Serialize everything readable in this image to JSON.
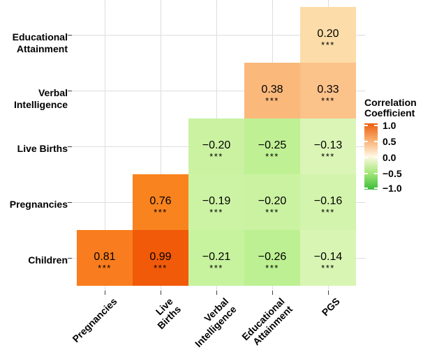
{
  "figure": {
    "background": "#FFFFFF",
    "gridline_color": "#DEDEDE",
    "tick_color": "#404040"
  },
  "chart_data": {
    "type": "heatmap",
    "title": "",
    "x_categories": [
      "Pregnancies",
      "Live Births",
      "Verbal\nIntelligence",
      "Educational\nAttainment",
      "PGS"
    ],
    "y_categories_top_to_bottom": [
      "Educational\nAttainment",
      "Verbal\nIntelligence",
      "Live Births",
      "Pregnancies",
      "Children"
    ],
    "grid": true,
    "cell_annotation": "correlation value with significance stars below",
    "cells": [
      {
        "row": 0,
        "col": 4,
        "y": "Educational Attainment",
        "x": "PGS",
        "value": 0.2,
        "label": "0.20",
        "stars": "***",
        "color": "#FCDCA8"
      },
      {
        "row": 1,
        "col": 3,
        "y": "Verbal Intelligence",
        "x": "Educational Attainment",
        "value": 0.38,
        "label": "0.38",
        "stars": "***",
        "color": "#FAB87B"
      },
      {
        "row": 1,
        "col": 4,
        "y": "Verbal Intelligence",
        "x": "PGS",
        "value": 0.33,
        "label": "0.33",
        "stars": "***",
        "color": "#FBC28A"
      },
      {
        "row": 2,
        "col": 2,
        "y": "Live Births",
        "x": "Verbal Intelligence",
        "value": -0.2,
        "label": "−0.20",
        "stars": "***",
        "color": "#CAF2A1"
      },
      {
        "row": 2,
        "col": 3,
        "y": "Live Births",
        "x": "Educational Attainment",
        "value": -0.25,
        "label": "−0.25",
        "stars": "***",
        "color": "#BFF094"
      },
      {
        "row": 2,
        "col": 4,
        "y": "Live Births",
        "x": "PGS",
        "value": -0.13,
        "label": "−0.13",
        "stars": "***",
        "color": "#DBF5B6"
      },
      {
        "row": 3,
        "col": 1,
        "y": "Pregnancies",
        "x": "Live Births",
        "value": 0.76,
        "label": "0.76",
        "stars": "***",
        "color": "#F8831F"
      },
      {
        "row": 3,
        "col": 2,
        "y": "Pregnancies",
        "x": "Verbal Intelligence",
        "value": -0.19,
        "label": "−0.19",
        "stars": "***",
        "color": "#CCF3A4"
      },
      {
        "row": 3,
        "col": 3,
        "y": "Pregnancies",
        "x": "Educational Attainment",
        "value": -0.2,
        "label": "−0.20",
        "stars": "***",
        "color": "#CAF2A1"
      },
      {
        "row": 3,
        "col": 4,
        "y": "Pregnancies",
        "x": "PGS",
        "value": -0.16,
        "label": "−0.16",
        "stars": "***",
        "color": "#D3F4AC"
      },
      {
        "row": 4,
        "col": 0,
        "y": "Children",
        "x": "Pregnancies",
        "value": 0.81,
        "label": "0.81",
        "stars": "***",
        "color": "#F97D1E"
      },
      {
        "row": 4,
        "col": 1,
        "y": "Children",
        "x": "Live Births",
        "value": 0.99,
        "label": "0.99",
        "stars": "***",
        "color": "#F15A08"
      },
      {
        "row": 4,
        "col": 2,
        "y": "Children",
        "x": "Verbal Intelligence",
        "value": -0.21,
        "label": "−0.21",
        "stars": "***",
        "color": "#C7F29E"
      },
      {
        "row": 4,
        "col": 3,
        "y": "Children",
        "x": "Educational Attainment",
        "value": -0.26,
        "label": "−0.26",
        "stars": "***",
        "color": "#BDF092"
      },
      {
        "row": 4,
        "col": 4,
        "y": "Children",
        "x": "PGS",
        "value": -0.14,
        "label": "−0.14",
        "stars": "***",
        "color": "#D9F5B4"
      }
    ],
    "colorbar": {
      "title": "Correlation\nCoefficient",
      "range": [
        -1.0,
        1.0
      ],
      "tick_values": [
        1.0,
        0.5,
        0.0,
        -0.5,
        -1.0
      ],
      "tick_labels": [
        "1.0",
        "0.5",
        "0.0",
        "−0.5",
        "−1.0"
      ],
      "gradient_top_to_bottom": [
        {
          "value": 1.0,
          "color": "#EB5E0E"
        },
        {
          "value": 0.5,
          "color": "#F9AE6F"
        },
        {
          "value": 0.0,
          "color": "#FEF8E4"
        },
        {
          "value": -0.5,
          "color": "#A5E878"
        },
        {
          "value": -1.0,
          "color": "#3CBB3C"
        }
      ],
      "legend_position": "right"
    }
  }
}
